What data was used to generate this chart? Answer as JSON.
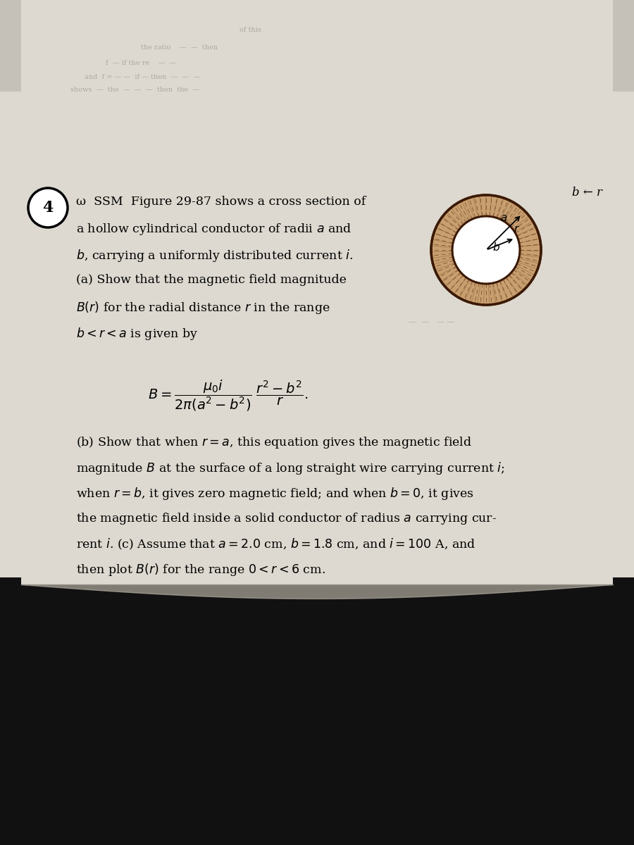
{
  "fig_width": 9.0,
  "fig_height": 12.0,
  "paper_bg": "#ddd9d0",
  "paper_upper_bg": "#ccc8bf",
  "dark_bg": "#111111",
  "text_color": "#111111",
  "problem_num": "4",
  "ssm_prefix": "ω  SSM",
  "line1": "Figure 29-87 shows a cross section of",
  "line2": "a hollow cylindrical conductor of radii $a$ and",
  "line3": "$b$, carrying a uniformly distributed current $i$.",
  "line4": "(a) Show that the magnetic field magnitude",
  "line5": "$B(r)$ for the radial distance $r$ in the range",
  "line6": "$b < r < a$ is given by",
  "formula": "$B = \\dfrac{\\mu_0 i}{2\\pi(a^2 - b^2)}\\;\\dfrac{r^2 - b^2}{r}.$",
  "partb1": "(b) Show that when $r = a$, this equation gives the magnetic field",
  "partb2": "magnitude $B$ at the surface of a long straight wire carrying current $i$;",
  "partb3": "when $r = b$, it gives zero magnetic field; and when $b = 0$, it gives",
  "partb4": "the magnetic field inside a solid conductor of radius $a$ carrying cur-",
  "partb5": "rent $i$. (c) Assume that $a = 2.0$ cm, $b = 1.8$ cm, and $i = 100$ A, and",
  "partb6": "then plot $B(r)$ for the range $0 < r < 6$ cm.",
  "corner_text": "b ← r",
  "faded_lines": [
    "of this",
    "the ratio",
    "f  — if the re",
    "and  f = — —  if — then  —",
    "shows  —  the  —  —  —"
  ],
  "circ_outer_color": "#c8a070",
  "circ_inner_color": "#ffffff",
  "circ_border_color": "#704020",
  "circ_hatch_color": "#804030",
  "a_cm": 2.0,
  "b_cm": 1.8,
  "i_A": 100
}
